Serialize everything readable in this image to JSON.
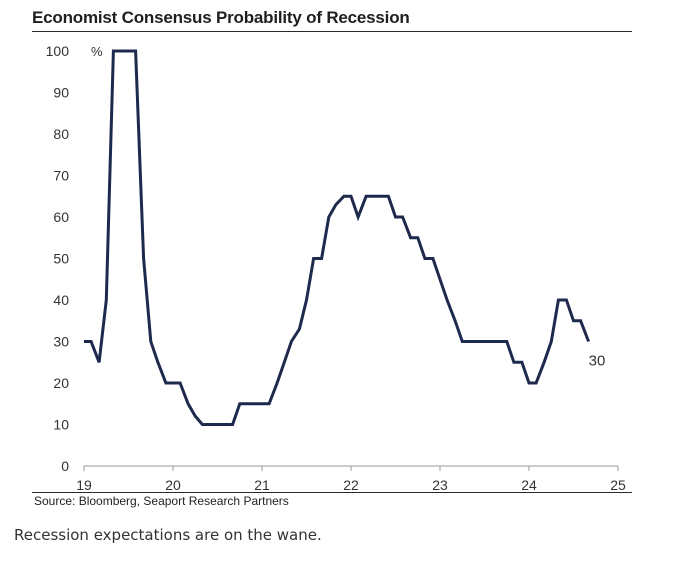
{
  "chart_data": {
    "type": "line",
    "title": "Economist Consensus Probability of Recession",
    "ylabel": "%",
    "xlabel": "",
    "ylim": [
      0,
      100
    ],
    "xlim": [
      19,
      25
    ],
    "yticks": [
      0,
      10,
      20,
      30,
      40,
      50,
      60,
      70,
      80,
      90,
      100
    ],
    "xticks": [
      19,
      20,
      21,
      22,
      23,
      24,
      25
    ],
    "grid": false,
    "series": [
      {
        "color": "#1e2a4d",
        "x": [
          19.0,
          19.08,
          19.17,
          19.25,
          19.33,
          19.42,
          19.5,
          19.58,
          19.67,
          19.75,
          19.83,
          19.92,
          20.0,
          20.08,
          20.17,
          20.25,
          20.33,
          20.42,
          20.5,
          20.58,
          20.67,
          20.75,
          20.83,
          20.92,
          21.0,
          21.08,
          21.17,
          21.25,
          21.33,
          21.42,
          21.5,
          21.58,
          21.67,
          21.75,
          21.83,
          21.92,
          22.0,
          22.08,
          22.17,
          22.25,
          22.33,
          22.42,
          22.5,
          22.58,
          22.67,
          22.75,
          22.83,
          22.92,
          23.0,
          23.08,
          23.17,
          23.25,
          23.33,
          23.42,
          23.5,
          23.58,
          23.67,
          23.75,
          23.83,
          23.92,
          24.0,
          24.08,
          24.17,
          24.25,
          24.33,
          24.42,
          24.5,
          24.58,
          24.67
        ],
        "values": [
          30,
          30,
          25,
          40,
          100,
          100,
          100,
          100,
          50,
          30,
          25,
          20,
          20,
          20,
          15,
          12,
          10,
          10,
          10,
          10,
          10,
          15,
          15,
          15,
          15,
          15,
          20,
          25,
          30,
          33,
          40,
          50,
          50,
          60,
          63,
          65,
          65,
          60,
          65,
          65,
          65,
          65,
          60,
          60,
          55,
          55,
          50,
          50,
          45,
          40,
          35,
          30,
          30,
          30,
          30,
          30,
          30,
          30,
          25,
          25,
          20,
          20,
          25,
          30,
          40,
          40,
          35,
          35,
          30
        ]
      }
    ],
    "annotations": [
      {
        "text": "30",
        "x": 24.67,
        "y": 30
      }
    ],
    "source": "Source: Bloomberg, Seaport Research Partners"
  },
  "caption": "Recession expectations are on the wane."
}
